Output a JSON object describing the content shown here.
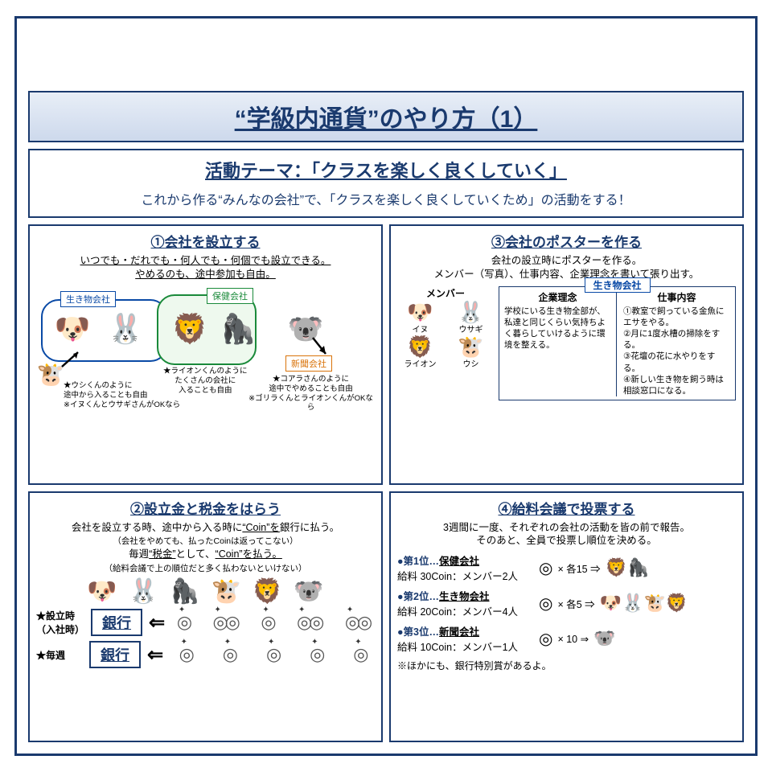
{
  "title": "“学級内通貨”のやり方（1）",
  "theme": {
    "heading": "活動テーマ：「クラスを楽しく良くしていく」",
    "sub": "これから作る“みんなの会社”で、「クラスを楽しく良くしていくため」の活動をする！"
  },
  "panel1": {
    "title": "①会社を設立する",
    "sub": "いつでも・だれでも・何人でも・何個でも設立できる。\nやめるのも、途中参加も自由。",
    "tag_bio": "生き物会社",
    "tag_health": "保健会社",
    "tag_news": "新聞会社",
    "note_cow": "★ウシくんのように\n途中から入ることも自由\n※イヌくんとウサギさんがOKなら",
    "note_lion": "★ライオンくんのように\nたくさんの会社に\n入ることも自由",
    "note_koala": "★コアラさんのように\n途中でやめることも自由\n※ゴリラくんとライオンくんがOKなら"
  },
  "panel2": {
    "title": "②設立金と税金をはらう",
    "sub_html": "会社を設立する時、途中から入る時に<span class='u'>“Coin”を</span>銀行に払う。<br><span class='small'>（会社をやめても、払ったCoinは返ってこない）</span><br>毎週<span class='u'>“税金”</span>として、<span class='u'>“Coin”を払う。</span><br><span class='small'>（給料会議で上の順位だと多く払わないといけない）</span>",
    "row1_label": "★設立時\n（入社時）",
    "row2_label": "★毎週",
    "bank": "銀行"
  },
  "panel3": {
    "title": "③会社のポスターを作る",
    "sub": "会社の設立時にポスターを作る。\nメンバー（写真）、仕事内容、企業理念を書いて張り出す。",
    "tab": "生き物会社",
    "members_hdr": "メンバー",
    "members": [
      {
        "icon": "🐶",
        "name": "イヌ"
      },
      {
        "icon": "🐰",
        "name": "ウサギ"
      },
      {
        "icon": "🦁",
        "name": "ライオン"
      },
      {
        "icon": "🐮",
        "name": "ウシ"
      }
    ],
    "philosophy_h": "企業理念",
    "philosophy": "学校にいる生き物全部が、私達と同じくらい気持ちよく暮らしていけるように環境を整える。",
    "duties_h": "仕事内容",
    "duties": "①教室で飼っている金魚にエサをやる。\n②月に1度水槽の掃除をする。\n③花壇の花に水やりをする。\n④新しい生き物を飼う時は相談窓口になる。"
  },
  "panel4": {
    "title": "④給料会議で投票する",
    "sub": "3週間に一度、それぞれの会社の活動を皆の前で報告。\nそのあと、全員で投票し順位を決める。",
    "ranks": [
      {
        "pos": "●第1位…",
        "name": "保健会社",
        "pay": "給料 30Coin：メンバー2人",
        "mult": "× 各15 ⇒",
        "icons": [
          "🦁",
          "🦍"
        ]
      },
      {
        "pos": "●第2位…",
        "name": "生き物会社",
        "pay": "給料 20Coin：メンバー4人",
        "mult": "× 各5 ⇒",
        "icons": [
          "🐶",
          "🐰",
          "🐮",
          "🦁"
        ]
      },
      {
        "pos": "●第3位…",
        "name": "新聞会社",
        "pay": "給料 10Coin：メンバー1人",
        "mult": "× 10 ⇒",
        "icons": [
          "🐨"
        ]
      }
    ],
    "note": "※ほかにも、銀行特別賞があるよ。"
  },
  "animals": {
    "dog": "🐶",
    "rabbit": "🐰",
    "lion": "🦁",
    "gorilla": "🦍",
    "koala": "🐨",
    "cow": "🐮"
  }
}
